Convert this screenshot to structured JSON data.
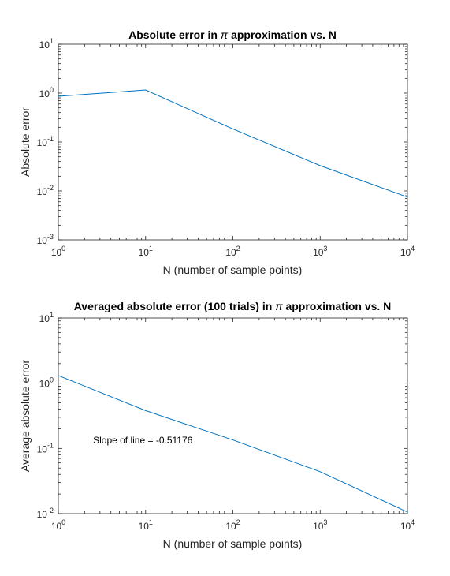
{
  "chart_data": [
    {
      "type": "line",
      "title_pre": "Absolute error in ",
      "title_pi": "π",
      "title_post": " approximation vs. N",
      "xlabel": "N (number of sample points)",
      "ylabel": "Absolute error",
      "xscale": "log",
      "yscale": "log",
      "xlim": [
        1,
        10000
      ],
      "ylim": [
        0.001,
        10
      ],
      "xtick_exps": [
        "0",
        "1",
        "2",
        "3",
        "4"
      ],
      "ytick_exps": [
        "-3",
        "-2",
        "-1",
        "0",
        "1"
      ],
      "tick_base": "10",
      "grid": false,
      "series_color": "#0072BD",
      "x": [
        1,
        10,
        100,
        1000,
        10000
      ],
      "y": [
        0.86,
        1.16,
        0.185,
        0.033,
        0.0075
      ]
    },
    {
      "type": "line",
      "title_pre": "Averaged absolute error (100 trials) in ",
      "title_pi": "π",
      "title_post": " approximation vs. N",
      "xlabel": "N (number of sample points)",
      "ylabel": "Average absolute error",
      "xscale": "log",
      "yscale": "log",
      "xlim": [
        1,
        10000
      ],
      "ylim": [
        0.01,
        10
      ],
      "xtick_exps": [
        "0",
        "1",
        "2",
        "3",
        "4"
      ],
      "ytick_exps": [
        "-2",
        "-1",
        "0",
        "1"
      ],
      "tick_base": "10",
      "grid": false,
      "series_color": "#0072BD",
      "x": [
        1,
        10,
        100,
        1000,
        10000
      ],
      "y": [
        1.31,
        0.38,
        0.135,
        0.044,
        0.0106
      ],
      "annotation": "Slope of line = -0.51176",
      "annotation_at": [
        2.5,
        0.12
      ]
    }
  ]
}
